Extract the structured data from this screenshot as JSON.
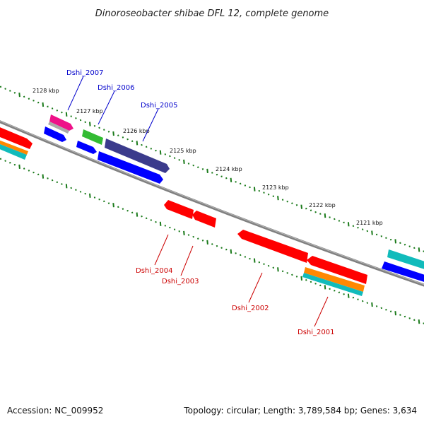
{
  "title": "Dinoroseobacter shibae DFL 12, complete genome",
  "footer": {
    "accession": "Accession: NC_009952",
    "topology": "Topology: circular; Length: 3,789,584 bp; Genes: 3,634"
  },
  "scale_labels": [
    "2128 kbp",
    "2127 kbp",
    "2126 kbp",
    "2125 kbp",
    "2124 kbp",
    "2123 kbp",
    "2122 kbp",
    "2121 kbp"
  ],
  "gene_labels_top": [
    "Dshi_2007",
    "Dshi_2006",
    "Dshi_2005"
  ],
  "gene_labels_bottom": [
    "Dshi_2004",
    "Dshi_2003",
    "Dshi_2002",
    "Dshi_2001"
  ],
  "colors": {
    "backbone": "#808080",
    "tick": "#1a7a1a",
    "forward_label": "#0000cc",
    "reverse_label": "#cc0000",
    "gene_red": "#ff0000",
    "gene_blue": "#0000ff",
    "gene_navy": "#3b3b8c",
    "gene_green": "#33bb33",
    "gene_magenta": "#ee1188",
    "gene_gray": "#aaaaaa",
    "gene_orange": "#ff8800",
    "gene_cyan": "#11bbbb"
  }
}
